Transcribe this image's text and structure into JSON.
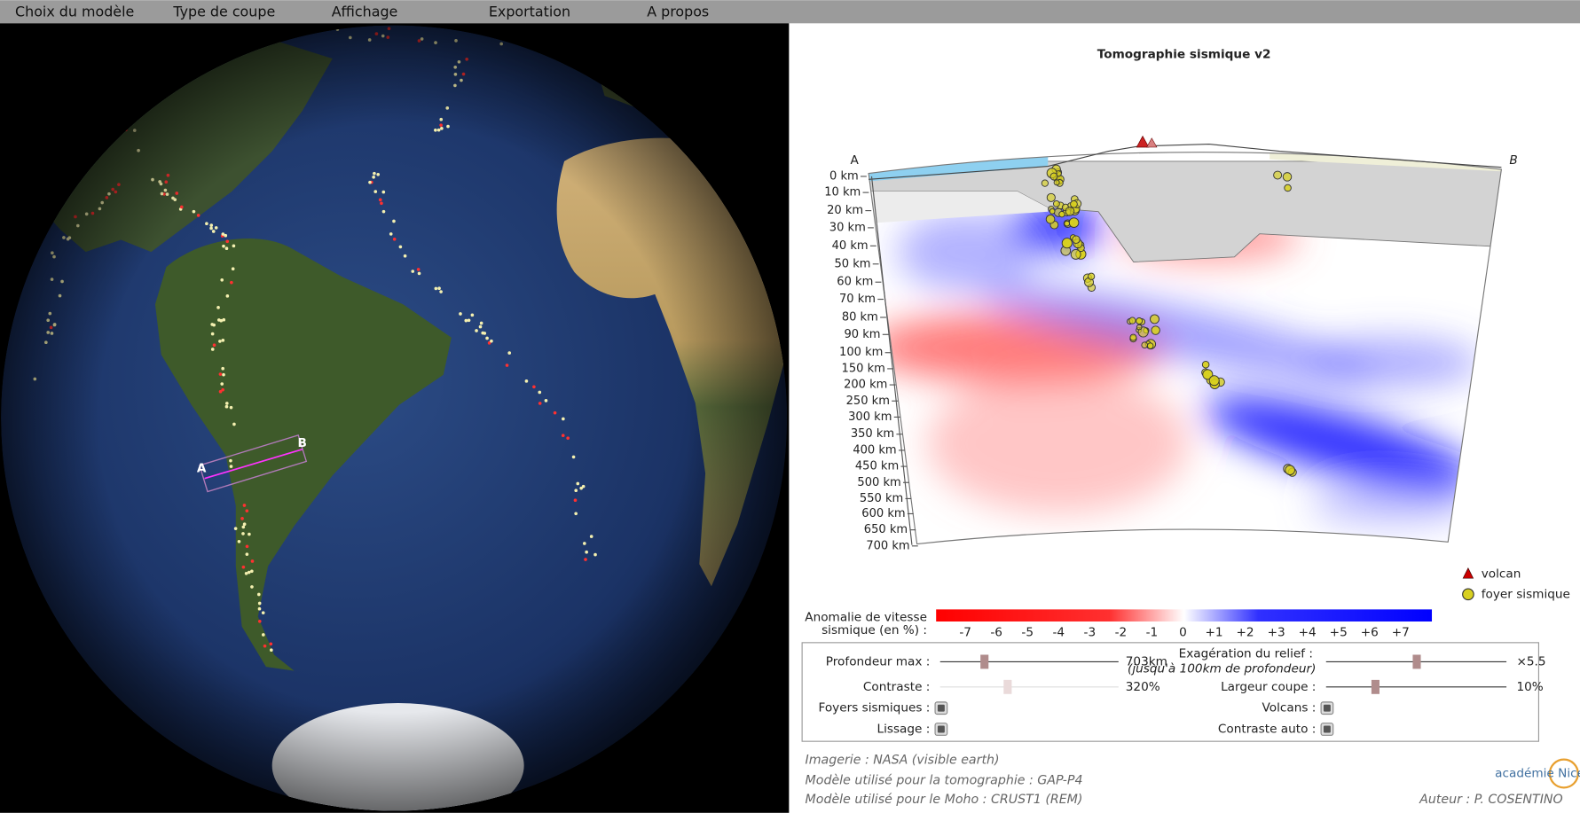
{
  "menu": [
    "Choix du modèle",
    "Type de coupe",
    "Affichage",
    "Exportation",
    "A propos"
  ],
  "title": "Tomographie sismique v2",
  "globe": {
    "label_a": "A",
    "label_b": "B"
  },
  "section": {
    "label_a": "A",
    "label_b": "B",
    "depth_labels": [
      "0 km",
      "10 km",
      "20 km",
      "30 km",
      "40 km",
      "50 km",
      "60 km",
      "70 km",
      "80 km",
      "90 km",
      "100 km",
      "150 km",
      "200 km",
      "250 km",
      "300 km",
      "350 km",
      "400 km",
      "450 km",
      "500 km",
      "550 km",
      "600 km",
      "650 km",
      "700 km"
    ]
  },
  "legend": {
    "volcano": "volcan",
    "focus": "foyer sismique"
  },
  "colorbar": {
    "title_lines": [
      "Anomalie de vitesse",
      "sismique (en %) :"
    ],
    "ticks": [
      "-7",
      "-6",
      "-5",
      "-4",
      "-3",
      "-2",
      "-1",
      "0",
      "+1",
      "+2",
      "+3",
      "+4",
      "+5",
      "+6",
      "+7"
    ]
  },
  "controls": {
    "depth_max": {
      "label": "Profondeur max :",
      "value": "703km"
    },
    "relief": {
      "label": "Exagération du relief :",
      "note": "(jusqu'à 100km de profondeur)",
      "value": "×5.5"
    },
    "contrast": {
      "label": "Contraste :",
      "value": "320%"
    },
    "width": {
      "label": "Largeur coupe :",
      "value": "10%"
    },
    "foci": {
      "label": "Foyers sismiques :"
    },
    "volcanoes": {
      "label": "Volcans :"
    },
    "smoothing": {
      "label": "Lissage :"
    },
    "auto_contrast": {
      "label": "Contraste auto :"
    }
  },
  "credits": {
    "imagery": "Imagerie : NASA (visible earth)",
    "tomo_model": "Modèle utilisé pour la tomographie : GAP-P4",
    "moho_model": "Modèle utilisé pour le Moho : CRUST1 (REM)",
    "author": "Auteur : P. COSENTINO",
    "logo": "académie Nice"
  }
}
